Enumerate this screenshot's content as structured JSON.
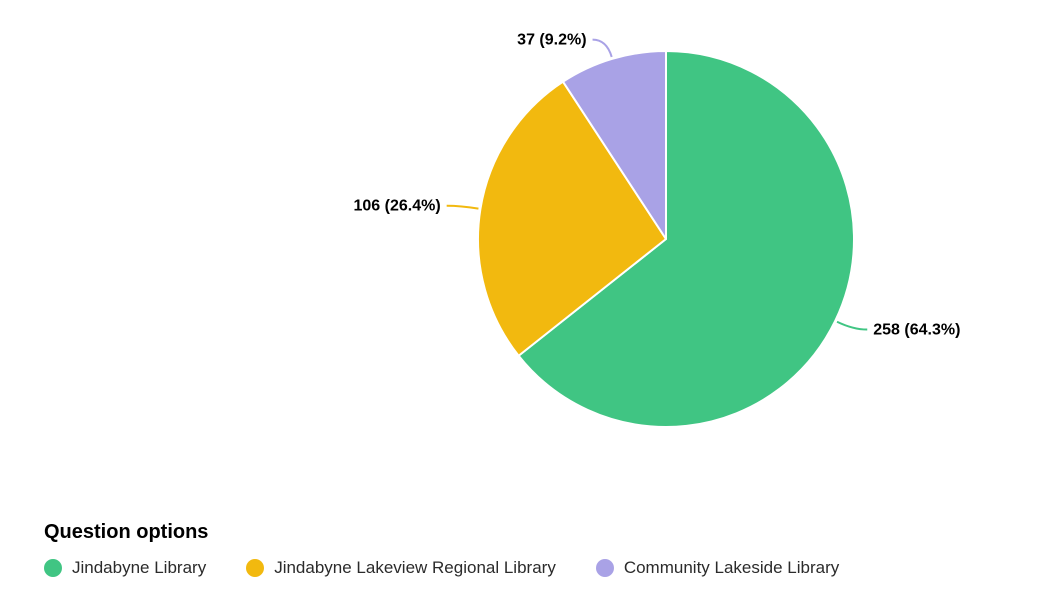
{
  "chart_data": {
    "type": "pie",
    "legend_title": "Question options",
    "legend_position": "bottom-left",
    "slices": [
      {
        "label": "Jindabyne Library",
        "value": 258,
        "percent": 64.3,
        "display": "258 (64.3%)",
        "color": "#40c583"
      },
      {
        "label": "Jindabyne Lakeview Regional Library",
        "value": 106,
        "percent": 26.4,
        "display": "106 (26.4%)",
        "color": "#f2b90f"
      },
      {
        "label": "Community Lakeside Library",
        "value": 37,
        "percent": 9.2,
        "display": "37 (9.2%)",
        "color": "#a9a2e6"
      }
    ]
  }
}
